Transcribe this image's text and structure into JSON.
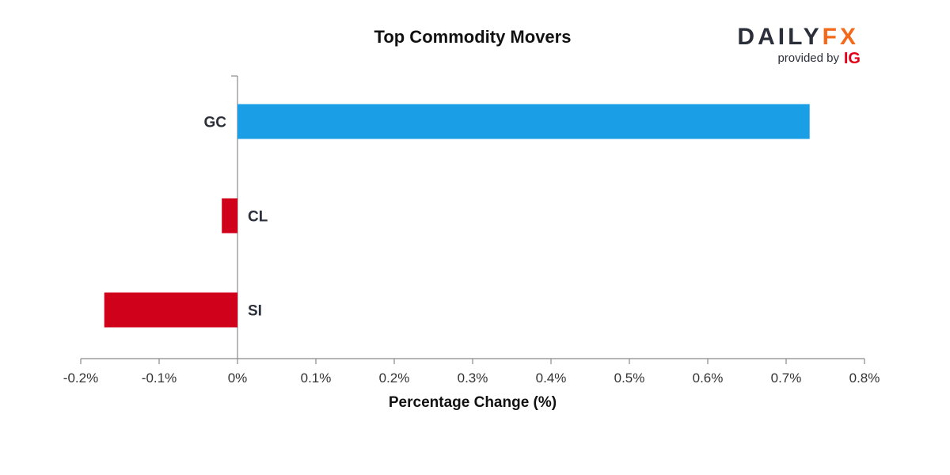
{
  "brand": {
    "name_part1": "DAILY",
    "name_part2": "FX",
    "provided_by": "provided by",
    "ig": "IG",
    "color_dark": "#2b2f3a",
    "color_accent": "#f26b1d",
    "color_ig": "#e1001a"
  },
  "colors": {
    "positive": "#1a9ee5",
    "negative": "#d0021b"
  },
  "chart_data": {
    "type": "bar",
    "orientation": "horizontal",
    "title": "Top Commodity Movers",
    "xlabel": "Percentage Change (%)",
    "ylabel": "",
    "categories": [
      "GC",
      "CL",
      "SI"
    ],
    "values": [
      0.73,
      -0.02,
      -0.17
    ],
    "xlim": [
      -0.2,
      0.8
    ],
    "xticks": [
      -0.2,
      -0.1,
      0,
      0.1,
      0.2,
      0.3,
      0.4,
      0.5,
      0.6,
      0.7,
      0.8
    ],
    "xtick_labels": [
      "-0.2%",
      "-0.1%",
      "0%",
      "0.1%",
      "0.2%",
      "0.3%",
      "0.4%",
      "0.5%",
      "0.6%",
      "0.7%",
      "0.8%"
    ],
    "grid": false,
    "legend": "none"
  }
}
